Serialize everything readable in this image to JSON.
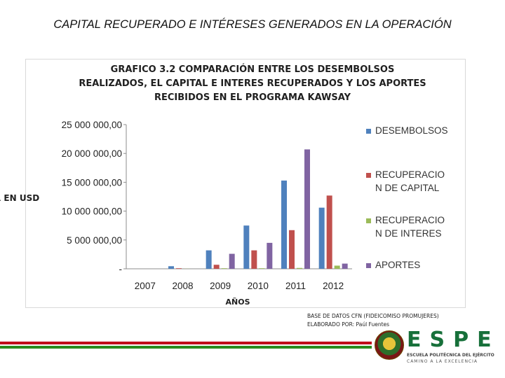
{
  "page": {
    "title": "CAPITAL RECUPERADO E INTÉRESES GENERADOS EN LA OPERACIÓN",
    "ylabel_visible": "R EN USD"
  },
  "chart_data": {
    "type": "bar",
    "title_lines": [
      "GRAFICO 3.2 COMPARACIÓN ENTRE LOS DESEMBOLSOS",
      "REALIZADOS, EL CAPITAL E INTERES RECUPERADOS Y LOS APORTES",
      "RECIBIDOS EN EL PROGRAMA KAWSAY"
    ],
    "xlabel": "AÑOS",
    "ylabel": "R EN USD",
    "ylim": [
      0,
      25000000
    ],
    "yticks": [
      {
        "value": 0,
        "label": "-"
      },
      {
        "value": 5000000,
        "label": "5 000 000,00"
      },
      {
        "value": 10000000,
        "label": "10 000 000,00"
      },
      {
        "value": 15000000,
        "label": "15 000 000,00"
      },
      {
        "value": 20000000,
        "label": "20 000 000,00"
      },
      {
        "value": 25000000,
        "label": "25 000 000,00"
      }
    ],
    "categories": [
      "2007",
      "2008",
      "2009",
      "2010",
      "2011",
      "2012"
    ],
    "series": [
      {
        "name": "DESEMBOLSOS",
        "legend_lines": [
          "DESEMBOLSOS"
        ],
        "color": "#4f81bd",
        "values": [
          0,
          450000,
          3200000,
          7500000,
          15300000,
          10600000
        ]
      },
      {
        "name": "RECUPERACION DE CAPITAL",
        "legend_lines": [
          "RECUPERACIO",
          "N DE CAPITAL"
        ],
        "color": "#c0504d",
        "values": [
          0,
          100000,
          700000,
          3200000,
          6700000,
          12700000
        ]
      },
      {
        "name": "RECUPERACION DE INTERES",
        "legend_lines": [
          "RECUPERACIO",
          "N DE INTERES"
        ],
        "color": "#9bbb59",
        "values": [
          0,
          20000,
          100000,
          100000,
          150000,
          550000
        ]
      },
      {
        "name": "APORTES",
        "legend_lines": [
          "APORTES"
        ],
        "color": "#8064a2",
        "values": [
          0,
          0,
          2600000,
          4500000,
          20700000,
          900000
        ]
      }
    ],
    "grid": false,
    "legend_position": "right"
  },
  "source": {
    "line1": "BASE DE DATOS CFN (FIDEICOMISO PROMUJERES)",
    "line2": "ELABORADO POR: Paúl Fuentes"
  },
  "logo": {
    "word": "ESPE",
    "sub1": "ESCUELA POLITÉCNICA DEL EJÉRCITO",
    "sub2": "CAMINO A LA EXCELENCIA"
  },
  "colors": {
    "footer_red": "#c0001a",
    "footer_green": "#2b8a1f",
    "brand_green": "#17703a"
  }
}
